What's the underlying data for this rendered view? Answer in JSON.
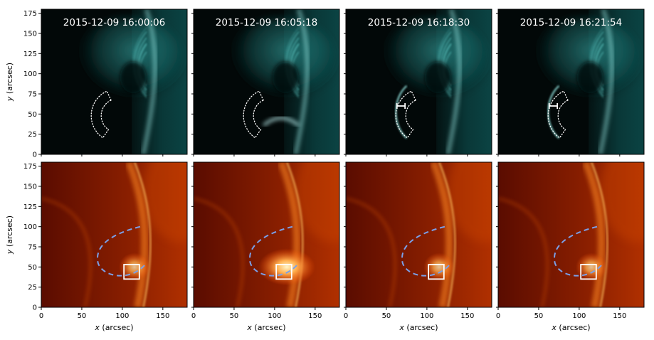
{
  "figure": {
    "panels_top": [
      {
        "timestamp": "2015-12-09 16:00:06",
        "channel": "cyan",
        "marker": "dotted-sector",
        "error_bar": false
      },
      {
        "timestamp": "2015-12-09 16:05:18",
        "channel": "cyan",
        "marker": "dotted-sector",
        "error_bar": false
      },
      {
        "timestamp": "2015-12-09 16:18:30",
        "channel": "cyan",
        "marker": "dotted-sector",
        "error_bar": true
      },
      {
        "timestamp": "2015-12-09 16:21:54",
        "channel": "cyan",
        "marker": "dotted-sector",
        "error_bar": true
      }
    ],
    "panels_bottom": [
      {
        "channel": "red",
        "overlay": [
          "dashed-loop",
          "box"
        ]
      },
      {
        "channel": "red",
        "overlay": [
          "dashed-loop",
          "box"
        ]
      },
      {
        "channel": "red",
        "overlay": [
          "dashed-loop",
          "box"
        ]
      },
      {
        "channel": "red",
        "overlay": [
          "dashed-loop",
          "box"
        ]
      }
    ],
    "y_axis": {
      "label_var": "y",
      "label_unit": " (arcsec)",
      "ticks": [
        "0",
        "25",
        "50",
        "75",
        "100",
        "125",
        "150",
        "175"
      ],
      "range": [
        0,
        180
      ]
    },
    "x_axis": {
      "label_var": "x",
      "label_unit": " (arcsec)",
      "ticks": [
        "0",
        "50",
        "100",
        "150"
      ],
      "range": [
        0,
        180
      ]
    },
    "colors": {
      "top_colormap": [
        "#000000",
        "#0d3a3a",
        "#2aa6a6",
        "#7ff0ee",
        "#e8ffff"
      ],
      "bottom_colormap": [
        "#000000",
        "#5a0a00",
        "#c93a00",
        "#ffa040",
        "#ffffe0"
      ],
      "dashed_loop": "#7aa0e8",
      "overlay_white": "#ffffff"
    }
  }
}
